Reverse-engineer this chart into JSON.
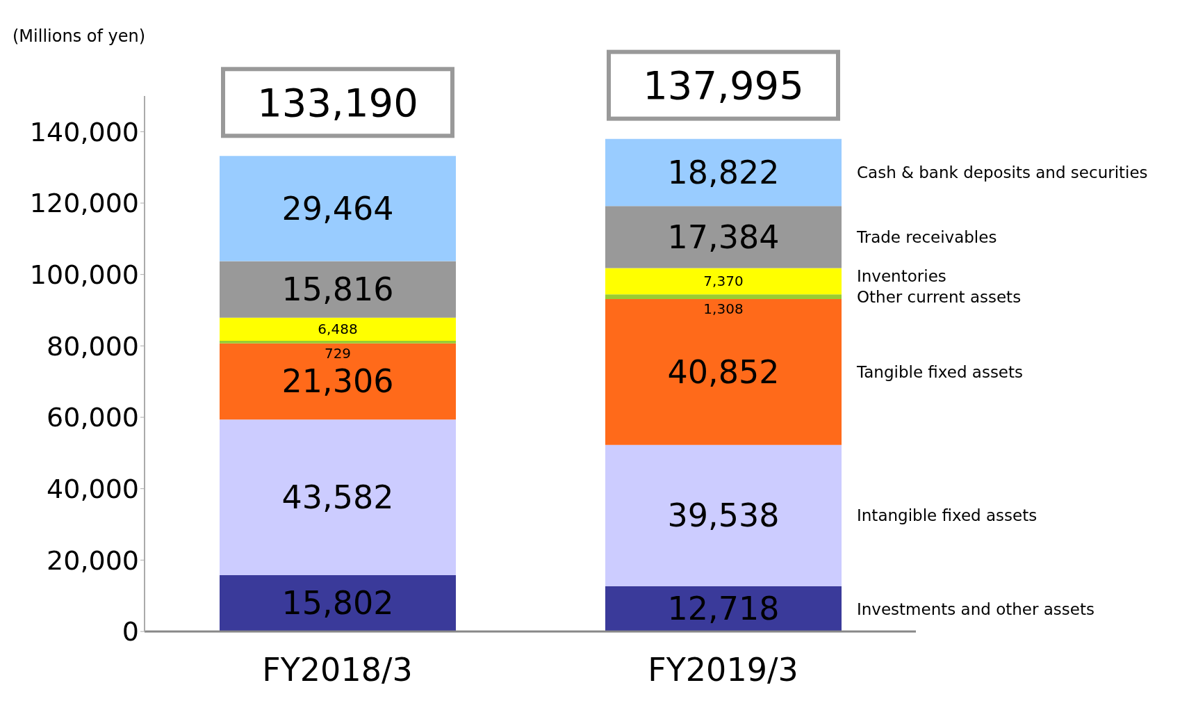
{
  "chart_data": {
    "type": "bar",
    "stacked": true,
    "ylabel": "(Millions of yen)",
    "categories": [
      "FY2018/3",
      "FY2019/3"
    ],
    "series": [
      {
        "name": "Investments and other assets",
        "color": "#3a3a9a",
        "values": [
          15802,
          12718
        ],
        "value_labels": [
          "15,802",
          "12,718"
        ]
      },
      {
        "name": "Intangible fixed assets",
        "color": "#ccccff",
        "values": [
          43582,
          39538
        ],
        "value_labels": [
          "43,582",
          "39,538"
        ]
      },
      {
        "name": "Tangible fixed assets",
        "color": "#ff6a1a",
        "values": [
          21306,
          40852
        ],
        "value_labels": [
          "21,306",
          "40,852"
        ]
      },
      {
        "name": "Other current assets",
        "color": "#99cc33",
        "values": [
          729,
          1308
        ],
        "value_labels": [
          "729",
          "1,308"
        ]
      },
      {
        "name": "Inventories",
        "color": "#ffff00",
        "values": [
          6488,
          7370
        ],
        "value_labels": [
          "6,488",
          "7,370"
        ]
      },
      {
        "name": "Trade receivables",
        "color": "#999999",
        "values": [
          15816,
          17384
        ],
        "value_labels": [
          "15,816",
          "17,384"
        ]
      },
      {
        "name": "Cash & bank deposits and securities",
        "color": "#99ccff",
        "values": [
          29464,
          18822
        ],
        "value_labels": [
          "29,464",
          "18,822"
        ]
      }
    ],
    "totals": [
      "133,190",
      "137,995"
    ],
    "ylim": [
      0,
      150000
    ],
    "yticks": [
      0,
      {
        "value": 20000,
        "label": "20,000"
      },
      {
        "value": 40000,
        "label": "40,000"
      },
      {
        "value": 60000,
        "label": "60,000"
      },
      {
        "value": 80000,
        "label": "80,000"
      },
      {
        "value": 100000,
        "label": "100,000"
      },
      {
        "value": 120000,
        "label": "120,000"
      },
      {
        "value": 140000,
        "label": "140,000"
      }
    ],
    "legend": "right",
    "grid": false
  }
}
